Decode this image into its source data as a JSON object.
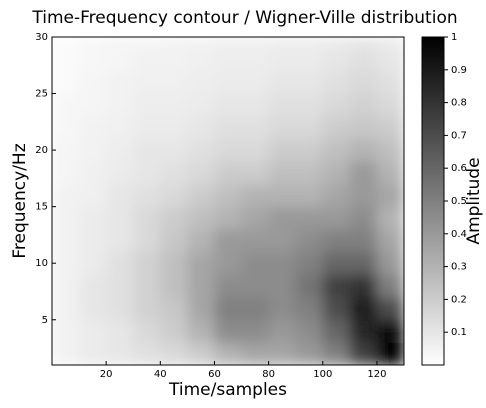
{
  "chart_data": {
    "type": "heatmap",
    "title": "Time-Frequency contour / Wigner-Ville distribution",
    "xlabel": "Time/samples",
    "ylabel": "Frequency/Hz",
    "colorbar_label": "Amplitude",
    "xbins": [
      0,
      10,
      20,
      30,
      40,
      50,
      60,
      70,
      80,
      90,
      100,
      110,
      120,
      130
    ],
    "ybins": [
      1,
      3,
      5,
      7,
      9,
      11,
      13,
      15,
      17,
      19,
      21,
      23,
      25,
      27,
      29,
      30
    ],
    "z": [
      [
        0.05,
        0.08,
        0.1,
        0.12,
        0.15,
        0.2,
        0.3,
        0.35,
        0.35,
        0.4,
        0.5,
        0.75,
        1
      ],
      [
        0.05,
        0.08,
        0.1,
        0.15,
        0.2,
        0.3,
        0.45,
        0.45,
        0.4,
        0.45,
        0.6,
        0.85,
        0.95
      ],
      [
        0.05,
        0.1,
        0.12,
        0.18,
        0.22,
        0.35,
        0.5,
        0.5,
        0.45,
        0.5,
        0.7,
        0.9,
        0.7
      ],
      [
        0.05,
        0.1,
        0.12,
        0.18,
        0.25,
        0.35,
        0.45,
        0.45,
        0.45,
        0.55,
        0.75,
        0.8,
        0.5
      ],
      [
        0.05,
        0.08,
        0.12,
        0.18,
        0.25,
        0.35,
        0.4,
        0.45,
        0.45,
        0.5,
        0.6,
        0.6,
        0.4
      ],
      [
        0.05,
        0.08,
        0.1,
        0.15,
        0.22,
        0.3,
        0.4,
        0.4,
        0.4,
        0.45,
        0.5,
        0.5,
        0.35
      ],
      [
        0.05,
        0.08,
        0.1,
        0.15,
        0.2,
        0.25,
        0.3,
        0.35,
        0.4,
        0.4,
        0.4,
        0.45,
        0.3
      ],
      [
        0.05,
        0.06,
        0.1,
        0.12,
        0.15,
        0.2,
        0.25,
        0.3,
        0.3,
        0.3,
        0.35,
        0.4,
        0.35
      ],
      [
        0.04,
        0.06,
        0.08,
        0.1,
        0.12,
        0.15,
        0.2,
        0.2,
        0.25,
        0.25,
        0.3,
        0.4,
        0.3
      ],
      [
        0.04,
        0.05,
        0.07,
        0.1,
        0.1,
        0.12,
        0.15,
        0.15,
        0.2,
        0.2,
        0.25,
        0.3,
        0.25
      ],
      [
        0.03,
        0.05,
        0.06,
        0.08,
        0.08,
        0.1,
        0.12,
        0.12,
        0.15,
        0.15,
        0.2,
        0.22,
        0.2
      ],
      [
        0.03,
        0.04,
        0.05,
        0.07,
        0.07,
        0.08,
        0.1,
        0.1,
        0.12,
        0.12,
        0.15,
        0.18,
        0.15
      ],
      [
        0.02,
        0.04,
        0.05,
        0.06,
        0.06,
        0.07,
        0.08,
        0.08,
        0.1,
        0.1,
        0.12,
        0.15,
        0.12
      ],
      [
        0.02,
        0.03,
        0.04,
        0.05,
        0.05,
        0.06,
        0.07,
        0.07,
        0.08,
        0.08,
        0.1,
        0.12,
        0.1
      ],
      [
        0.02,
        0.03,
        0.04,
        0.04,
        0.05,
        0.05,
        0.06,
        0.06,
        0.07,
        0.07,
        0.08,
        0.1,
        0.08
      ]
    ],
    "colors": [
      "#ffffff",
      "#000000"
    ],
    "xlim": [
      0,
      130
    ],
    "xticks": [
      20,
      40,
      60,
      80,
      100,
      120
    ],
    "ylim": [
      1,
      30
    ],
    "yticks": [
      5,
      10,
      15,
      20,
      25,
      30
    ],
    "clim": [
      0,
      1
    ],
    "cticks": [
      0.1,
      0.2,
      0.3,
      0.4,
      0.5,
      0.6,
      0.7,
      0.8,
      0.9,
      1
    ]
  }
}
